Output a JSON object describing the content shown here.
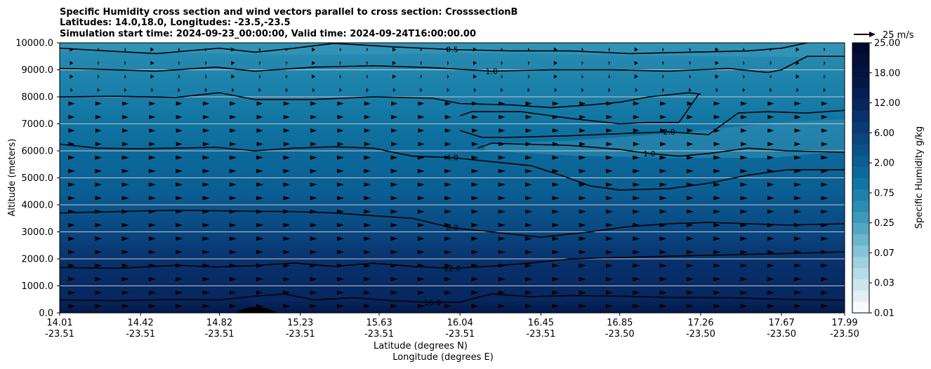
{
  "chart_data": {
    "type": "contour",
    "title_lines": [
      "Specific Humidity cross section and wind vectors parallel to cross section: CrosssectionB",
      "Latitudes: 14.0,18.0, Longitudes: -23.5,-23.5",
      "Simulation start time: 2024-09-23_00:00:00, Valid time: 2024-09-24T16:00:00.00"
    ],
    "ylabel": "Altitude (meters)",
    "xlabel_lines": [
      "Latitude (degrees N)",
      "Longitude (degrees E)"
    ],
    "ylim": [
      0,
      10000
    ],
    "xlim": [
      14.01,
      17.99
    ],
    "y_ticks": [
      0,
      1000,
      2000,
      3000,
      4000,
      5000,
      6000,
      7000,
      8000,
      9000,
      10000
    ],
    "y_tick_labels": [
      "0.0",
      "1000.0",
      "2000.0",
      "3000.0",
      "4000.0",
      "5000.0",
      "6000.0",
      "7000.0",
      "8000.0",
      "9000.0",
      "10000.0"
    ],
    "x_ticks": [
      {
        "lat": "14.01",
        "lon": "-23.51",
        "value": 14.01
      },
      {
        "lat": "14.42",
        "lon": "-23.51",
        "value": 14.42
      },
      {
        "lat": "14.82",
        "lon": "-23.51",
        "value": 14.82
      },
      {
        "lat": "15.23",
        "lon": "-23.51",
        "value": 15.23
      },
      {
        "lat": "15.63",
        "lon": "-23.51",
        "value": 15.63
      },
      {
        "lat": "16.04",
        "lon": "-23.51",
        "value": 16.04
      },
      {
        "lat": "16.45",
        "lon": "-23.51",
        "value": 16.45
      },
      {
        "lat": "16.85",
        "lon": "-23.50",
        "value": 16.85
      },
      {
        "lat": "17.26",
        "lon": "-23.50",
        "value": 17.26
      },
      {
        "lat": "17.67",
        "lon": "-23.50",
        "value": 17.67
      },
      {
        "lat": "17.99",
        "lon": "-23.50",
        "value": 17.99
      }
    ],
    "colorbar": {
      "label": "Specific Humidity g/kg",
      "tick_labels": [
        "0.01",
        "0.03",
        "0.07",
        "0.25",
        "0.75",
        "2.00",
        "6.00",
        "12.00",
        "18.00",
        "25.00"
      ],
      "colors": [
        "#f7fbfd",
        "#e2f0f5",
        "#cde6ee",
        "#b6dce7",
        "#9ed0df",
        "#84c4d7",
        "#6ab6cd",
        "#52a8c3",
        "#3b99b9",
        "#2a8db1",
        "#1d82ab",
        "#1276a3",
        "#0c6a9b",
        "#0b5e92",
        "#0a5289",
        "#0a4680",
        "#093b76",
        "#08306b",
        "#07275f",
        "#051f54",
        "#041848",
        "#03133e",
        "#020f36",
        "#020b2e"
      ],
      "grid_grid": true
    },
    "quiver_key": "25 m/s",
    "grid": "horizontal",
    "contours": [
      {
        "label": "16.0",
        "x": [
          14.01,
          14.3,
          14.6,
          14.82,
          15.0,
          15.15,
          15.3,
          15.5,
          15.7,
          15.9,
          16.04,
          16.2,
          16.4,
          16.6,
          16.85,
          17.1,
          17.4,
          17.7,
          17.99
        ],
        "y": [
          480,
          450,
          500,
          480,
          620,
          700,
          480,
          560,
          450,
          390,
          400,
          700,
          600,
          640,
          620,
          570,
          560,
          500,
          470
        ]
      },
      {
        "label": "12.0",
        "x": [
          14.01,
          14.3,
          14.6,
          14.8,
          15.0,
          15.2,
          15.4,
          15.6,
          15.8,
          16.0,
          16.2,
          16.4,
          16.6,
          16.85,
          17.1,
          17.4,
          17.7,
          17.99
        ],
        "y": [
          1680,
          1650,
          1760,
          1700,
          1750,
          1850,
          1720,
          1840,
          1720,
          1650,
          1730,
          1850,
          2000,
          2050,
          2100,
          2150,
          2200,
          2260
        ]
      },
      {
        "label": "8.0",
        "x": [
          14.01,
          14.3,
          14.6,
          14.8,
          15.0,
          15.2,
          15.4,
          15.6,
          15.8,
          16.0,
          16.2,
          16.45,
          16.7,
          16.9,
          17.1,
          17.3,
          17.5,
          17.7,
          17.99
        ],
        "y": [
          3700,
          3750,
          3800,
          3780,
          3760,
          3750,
          3700,
          3600,
          3500,
          3150,
          3000,
          2800,
          3000,
          3200,
          3300,
          3350,
          3300,
          3250,
          3300
        ]
      },
      {
        "label": "4.0",
        "x": [
          14.01,
          14.2,
          14.4,
          14.6,
          14.8,
          15.0,
          15.2,
          15.4,
          15.6,
          15.8,
          16.0,
          16.2,
          16.4,
          16.55,
          16.7,
          16.85,
          17.1,
          17.3,
          17.5,
          17.7,
          17.99
        ],
        "y": [
          6250,
          6100,
          6080,
          6100,
          6130,
          6000,
          6100,
          6150,
          6100,
          5800,
          5750,
          5600,
          5450,
          5100,
          4700,
          4550,
          4600,
          4800,
          5100,
          5300,
          5300
        ]
      },
      {
        "label": "1.0",
        "x": [
          16.13,
          16.2,
          16.35,
          16.6,
          16.85,
          17.0,
          17.15,
          17.3,
          17.5,
          17.7,
          17.99
        ],
        "y": [
          6100,
          6280,
          6250,
          6200,
          6050,
          5900,
          5800,
          5900,
          6100,
          6000,
          5950
        ]
      },
      {
        "label": "2.0",
        "x": [
          16.04,
          16.15,
          16.3,
          16.6,
          16.9,
          17.1,
          17.3,
          17.45,
          17.6,
          17.8,
          17.99
        ],
        "y": [
          6750,
          6500,
          6500,
          6560,
          6650,
          6700,
          6600,
          7400,
          7450,
          7400,
          7500
        ]
      },
      {
        "label": "",
        "x": [
          16.04,
          16.1,
          16.35,
          16.6,
          16.85,
          17.0,
          17.15,
          17.25
        ],
        "y": [
          7300,
          7450,
          7450,
          7200,
          7000,
          7050,
          7050,
          8100
        ]
      },
      {
        "label": "",
        "x": [
          14.01,
          14.3,
          14.6,
          14.82,
          15.0,
          15.3,
          15.6,
          15.9,
          16.04,
          16.3,
          16.5,
          16.7,
          16.85,
          17.0,
          17.2,
          17.26
        ],
        "y": [
          8000,
          8020,
          7980,
          8150,
          7900,
          7900,
          8000,
          7950,
          7750,
          7700,
          7600,
          7700,
          7800,
          8000,
          8150,
          8100
        ]
      },
      {
        "label": "1.0",
        "x": [
          14.01,
          14.2,
          14.5,
          14.8,
          15.0,
          15.3,
          15.6,
          15.9,
          16.2,
          16.5,
          16.8,
          17.1,
          17.4,
          17.6,
          17.67,
          17.8,
          17.99
        ],
        "y": [
          9050,
          9020,
          8950,
          9100,
          8950,
          9100,
          9150,
          9080,
          8950,
          9000,
          9000,
          8950,
          9050,
          8900,
          9000,
          9500,
          9500
        ]
      },
      {
        "label": "0.5",
        "x": [
          14.01,
          14.2,
          14.5,
          14.82,
          15.0,
          15.2,
          15.4,
          15.7,
          16.0,
          16.3,
          16.6,
          16.9,
          17.2,
          17.5,
          17.67,
          17.8
        ],
        "y": [
          9800,
          9720,
          9600,
          9800,
          9650,
          9800,
          9980,
          9850,
          9750,
          9700,
          9700,
          9600,
          9650,
          9700,
          9800,
          10000
        ]
      }
    ]
  }
}
